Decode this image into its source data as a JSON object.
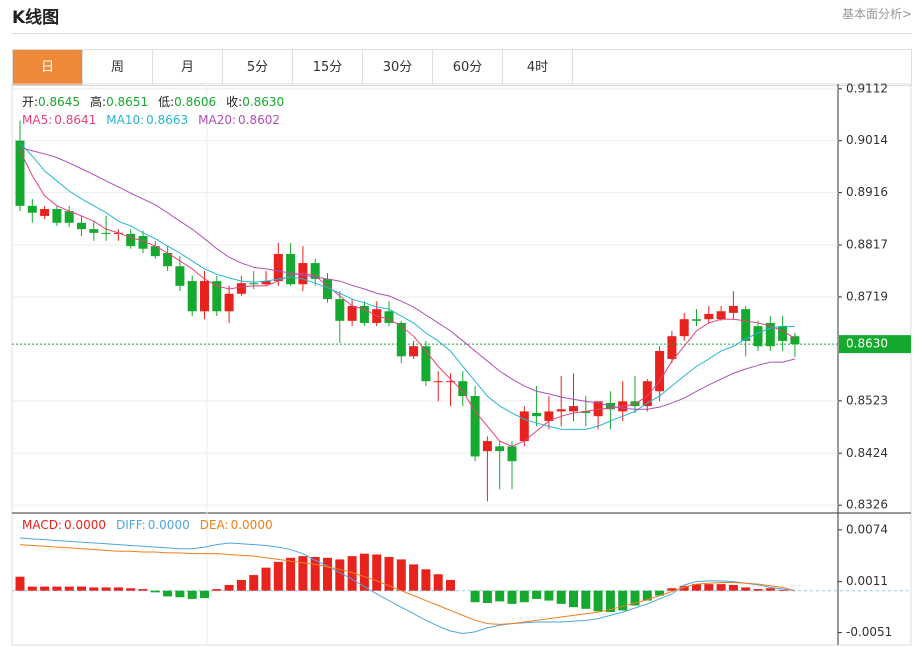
{
  "header": {
    "title": "K线图",
    "link": "基本面分析>"
  },
  "tabs": [
    "日",
    "周",
    "月",
    "5分",
    "15分",
    "30分",
    "60分",
    "4时"
  ],
  "chart_data": [
    {
      "type": "candlestick",
      "up_color": "#e8221c",
      "down_color": "#16a92f",
      "ylim": [
        0.8315,
        0.9121
      ],
      "yticks": [
        0.9112,
        0.9014,
        0.8916,
        0.8817,
        0.8719,
        0.8523,
        0.8424,
        0.8326
      ],
      "grid": true,
      "price_tag": {
        "value": 0.863,
        "label": "0.8630"
      },
      "info": [
        {
          "label": "开:",
          "value": "0.8645"
        },
        {
          "label": "高:",
          "value": "0.8651"
        },
        {
          "label": "低:",
          "value": "0.8606"
        },
        {
          "label": "收:",
          "value": "0.8630"
        }
      ],
      "open": [
        0.9014,
        0.8891,
        0.8872,
        0.8885,
        0.8881,
        0.8859,
        0.8847,
        0.884,
        0.8838,
        0.8838,
        0.8834,
        0.8815,
        0.8802,
        0.8777,
        0.8749,
        0.8692,
        0.8749,
        0.8692,
        0.8725,
        0.8745,
        0.8743,
        0.8749,
        0.88,
        0.8743,
        0.8783,
        0.8753,
        0.8715,
        0.8674,
        0.8702,
        0.867,
        0.8692,
        0.867,
        0.8607,
        0.8626,
        0.856,
        0.856,
        0.856,
        0.8532,
        0.8428,
        0.8437,
        0.8437,
        0.8447,
        0.85,
        0.8485,
        0.8503,
        0.8503,
        0.8503,
        0.8494,
        0.8519,
        0.8503,
        0.8522,
        0.8513,
        0.8541,
        0.8602,
        0.8645,
        0.8677,
        0.8677,
        0.8677,
        0.8689,
        0.8696,
        0.8664,
        0.867,
        0.8664,
        0.8645
      ],
      "high": [
        0.9052,
        0.8904,
        0.8891,
        0.8891,
        0.8891,
        0.8872,
        0.8862,
        0.8872,
        0.8847,
        0.8847,
        0.8844,
        0.8825,
        0.8815,
        0.8796,
        0.8759,
        0.8768,
        0.8759,
        0.874,
        0.8759,
        0.8768,
        0.8768,
        0.8821,
        0.8821,
        0.8815,
        0.8791,
        0.8764,
        0.873,
        0.8715,
        0.8711,
        0.8711,
        0.8711,
        0.8674,
        0.8636,
        0.8636,
        0.8579,
        0.8575,
        0.8579,
        0.8551,
        0.8456,
        0.8447,
        0.8447,
        0.8513,
        0.8551,
        0.8532,
        0.857,
        0.8575,
        0.8532,
        0.8522,
        0.8541,
        0.856,
        0.857,
        0.8564,
        0.8626,
        0.8655,
        0.8689,
        0.8696,
        0.8702,
        0.8702,
        0.873,
        0.8702,
        0.8674,
        0.8683,
        0.8683,
        0.8651
      ],
      "low": [
        0.8881,
        0.8859,
        0.8866,
        0.8853,
        0.8851,
        0.8834,
        0.8825,
        0.8825,
        0.8825,
        0.881,
        0.8802,
        0.8791,
        0.8768,
        0.873,
        0.8683,
        0.8677,
        0.8683,
        0.867,
        0.8721,
        0.8734,
        0.874,
        0.874,
        0.874,
        0.873,
        0.874,
        0.8708,
        0.8632,
        0.8664,
        0.8664,
        0.8664,
        0.8664,
        0.8594,
        0.8602,
        0.8551,
        0.8522,
        0.8513,
        0.8513,
        0.8409,
        0.8333,
        0.8356,
        0.8356,
        0.8437,
        0.8475,
        0.8469,
        0.8475,
        0.8485,
        0.8475,
        0.8469,
        0.8469,
        0.8485,
        0.85,
        0.8503,
        0.8522,
        0.8594,
        0.8636,
        0.8664,
        0.867,
        0.8674,
        0.8677,
        0.8607,
        0.8617,
        0.8617,
        0.8617,
        0.8606
      ],
      "close": [
        0.8891,
        0.8878,
        0.8885,
        0.8859,
        0.8859,
        0.8847,
        0.884,
        0.8838,
        0.884,
        0.8815,
        0.881,
        0.8796,
        0.8777,
        0.874,
        0.8692,
        0.8749,
        0.8692,
        0.8725,
        0.8745,
        0.8743,
        0.8749,
        0.88,
        0.8743,
        0.8783,
        0.8753,
        0.8715,
        0.8674,
        0.8702,
        0.867,
        0.8696,
        0.867,
        0.8607,
        0.8626,
        0.856,
        0.856,
        0.856,
        0.8532,
        0.8418,
        0.8447,
        0.8428,
        0.8409,
        0.8503,
        0.8494,
        0.8503,
        0.8507,
        0.8513,
        0.85,
        0.8522,
        0.8507,
        0.8522,
        0.8513,
        0.856,
        0.8617,
        0.8645,
        0.8677,
        0.8674,
        0.8687,
        0.8692,
        0.8702,
        0.8636,
        0.8626,
        0.8626,
        0.8636,
        0.863
      ],
      "series": [
        {
          "name": "MA5:",
          "last": "0.8641",
          "color": "#e8417c",
          "values": [
            0.8995,
            0.8948,
            0.891,
            0.8891,
            0.8881,
            0.8872,
            0.8862,
            0.8847,
            0.884,
            0.8831,
            0.8825,
            0.8815,
            0.8802,
            0.8787,
            0.8772,
            0.8753,
            0.874,
            0.8734,
            0.8738,
            0.874,
            0.874,
            0.8749,
            0.876,
            0.8764,
            0.8759,
            0.874,
            0.8721,
            0.8702,
            0.8696,
            0.8683,
            0.8677,
            0.8664,
            0.8645,
            0.8617,
            0.8588,
            0.8564,
            0.8541,
            0.8503,
            0.8475,
            0.8447,
            0.8437,
            0.8447,
            0.8466,
            0.8485,
            0.8494,
            0.85,
            0.8503,
            0.8507,
            0.8509,
            0.8513,
            0.8517,
            0.8532,
            0.856,
            0.8598,
            0.8626,
            0.8655,
            0.867,
            0.8677,
            0.8677,
            0.8674,
            0.867,
            0.8664,
            0.8655,
            0.8641
          ]
        },
        {
          "name": "MA10:",
          "last": "0.8663",
          "color": "#27b5d6",
          "values": [
            0.901,
            0.8985,
            0.8957,
            0.8938,
            0.8919,
            0.8904,
            0.8891,
            0.8878,
            0.8862,
            0.8853,
            0.884,
            0.8829,
            0.8815,
            0.8802,
            0.8787,
            0.8772,
            0.8762,
            0.8755,
            0.8749,
            0.8747,
            0.8749,
            0.8753,
            0.8757,
            0.8753,
            0.8745,
            0.8736,
            0.8726,
            0.8715,
            0.8708,
            0.87,
            0.8696,
            0.8683,
            0.867,
            0.8651,
            0.8636,
            0.8617,
            0.8588,
            0.856,
            0.8532,
            0.8513,
            0.85,
            0.8488,
            0.8481,
            0.8475,
            0.8469,
            0.8469,
            0.8469,
            0.8475,
            0.8485,
            0.8494,
            0.8503,
            0.8519,
            0.8532,
            0.8551,
            0.857,
            0.8588,
            0.8602,
            0.8617,
            0.8626,
            0.864,
            0.8651,
            0.866,
            0.8664,
            0.8663
          ]
        },
        {
          "name": "MA20:",
          "last": "0.8602",
          "color": "#b04fb8",
          "values": [
            0.9001,
            0.8995,
            0.8989,
            0.8982,
            0.8972,
            0.8961,
            0.895,
            0.8938,
            0.8927,
            0.8915,
            0.8904,
            0.8893,
            0.8878,
            0.8862,
            0.8847,
            0.8829,
            0.881,
            0.8794,
            0.8783,
            0.8775,
            0.8772,
            0.8768,
            0.8764,
            0.876,
            0.8757,
            0.8753,
            0.8749,
            0.8741,
            0.8734,
            0.8726,
            0.8721,
            0.8711,
            0.87,
            0.8685,
            0.867,
            0.8655,
            0.8636,
            0.8617,
            0.8598,
            0.8579,
            0.8564,
            0.8551,
            0.8541,
            0.8536,
            0.853,
            0.8526,
            0.8522,
            0.8519,
            0.8513,
            0.8509,
            0.8507,
            0.8507,
            0.8511,
            0.8519,
            0.8528,
            0.8541,
            0.8553,
            0.8564,
            0.8575,
            0.8583,
            0.859,
            0.8596,
            0.8596,
            0.8602
          ]
        }
      ]
    },
    {
      "type": "macd",
      "up_color": "#e8221c",
      "down_color": "#16a92f",
      "ylim": [
        -0.0066,
        0.0092
      ],
      "yticks": [
        0.0074,
        0.0011,
        -0.0051
      ],
      "bars": {
        "name": "MACD:",
        "last": "0.0000",
        "color": "#e8221c",
        "values": [
          0.0017,
          0.0005,
          0.0005,
          0.0005,
          0.0005,
          0.0005,
          0.0004,
          0.0004,
          0.0004,
          0.0003,
          0.0002,
          -0.0002,
          -0.0007,
          -0.0008,
          -0.001,
          -0.0009,
          0.0002,
          0.0007,
          0.0013,
          0.0019,
          0.0028,
          0.0035,
          0.004,
          0.0042,
          0.0041,
          0.004,
          0.0038,
          0.0042,
          0.0045,
          0.0044,
          0.0041,
          0.0038,
          0.0032,
          0.0026,
          0.002,
          0.0013,
          0.0,
          -0.0014,
          -0.0015,
          -0.0013,
          -0.0016,
          -0.0014,
          -0.001,
          -0.0012,
          -0.0016,
          -0.002,
          -0.0022,
          -0.0025,
          -0.0026,
          -0.0024,
          -0.0018,
          -0.0012,
          -0.0006,
          0.0003,
          0.0006,
          0.0008,
          0.0008,
          0.0008,
          0.0007,
          0.0004,
          0.0002,
          0.0003,
          0.0001,
          0.0
        ]
      },
      "series": [
        {
          "name": "DIFF:",
          "last": "0.0000",
          "color": "#4ea6e0",
          "values": [
            0.0064,
            0.0063,
            0.0062,
            0.0061,
            0.006,
            0.0059,
            0.0058,
            0.0057,
            0.0056,
            0.0055,
            0.0054,
            0.0053,
            0.0052,
            0.0051,
            0.0051,
            0.0053,
            0.0056,
            0.0058,
            0.0057,
            0.0056,
            0.0055,
            0.0053,
            0.005,
            0.0045,
            0.0037,
            0.003,
            0.0022,
            0.0014,
            0.0005,
            -0.0004,
            -0.0012,
            -0.002,
            -0.0028,
            -0.0036,
            -0.0043,
            -0.0049,
            -0.0052,
            -0.005,
            -0.0045,
            -0.0042,
            -0.004,
            -0.0039,
            -0.0038,
            -0.0038,
            -0.0038,
            -0.0037,
            -0.0036,
            -0.0034,
            -0.003,
            -0.0026,
            -0.0021,
            -0.0016,
            -0.001,
            -0.0004,
            0.0007,
            0.0011,
            0.0012,
            0.0012,
            0.0011,
            0.0009,
            0.0007,
            0.0004,
            0.0002,
            0.0
          ]
        },
        {
          "name": "DEA:",
          "last": "0.0000",
          "color": "#f07f1b",
          "values": [
            0.0056,
            0.0055,
            0.0054,
            0.0053,
            0.0052,
            0.0051,
            0.005,
            0.0049,
            0.0048,
            0.0048,
            0.0047,
            0.0047,
            0.0046,
            0.0046,
            0.0045,
            0.0045,
            0.0045,
            0.0044,
            0.0043,
            0.0042,
            0.004,
            0.0038,
            0.0036,
            0.0034,
            0.0032,
            0.0029,
            0.0026,
            0.0022,
            0.0017,
            0.0012,
            0.0006,
            0.0,
            -0.0006,
            -0.0012,
            -0.0018,
            -0.0024,
            -0.003,
            -0.0036,
            -0.004,
            -0.0041,
            -0.004,
            -0.0038,
            -0.0036,
            -0.0034,
            -0.0032,
            -0.003,
            -0.0028,
            -0.0026,
            -0.0023,
            -0.0019,
            -0.0015,
            -0.0011,
            -0.0006,
            -0.0001,
            0.0004,
            0.0008,
            0.0009,
            0.001,
            0.001,
            0.0009,
            0.0008,
            0.0006,
            0.0004,
            0.0
          ]
        }
      ]
    }
  ]
}
